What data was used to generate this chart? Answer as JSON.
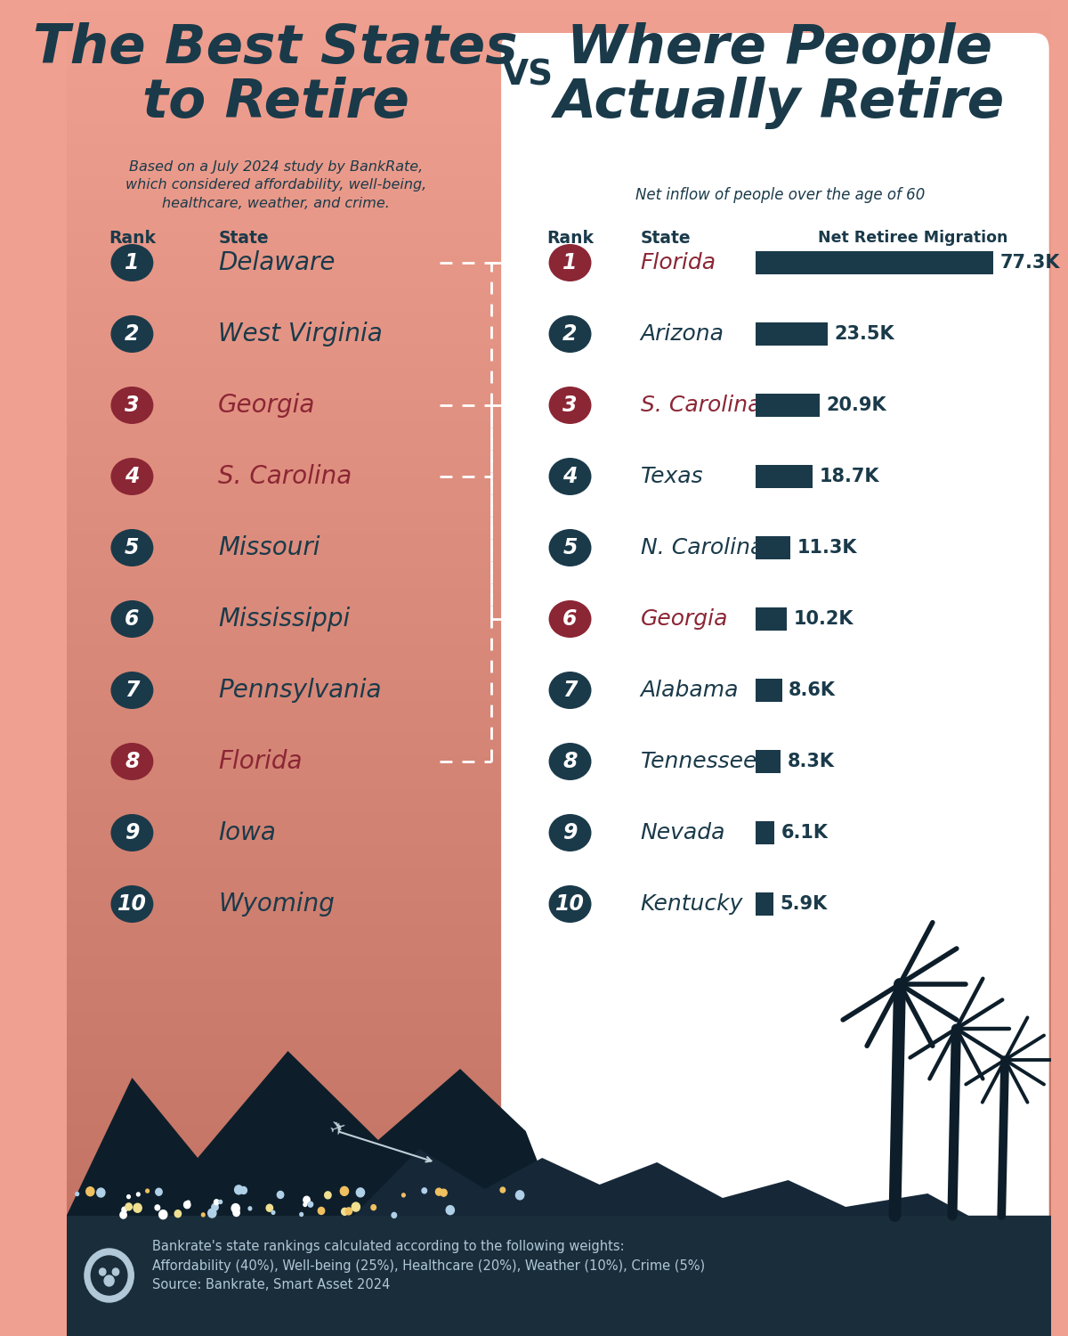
{
  "dark_navy": "#1a3a4a",
  "red_highlight": "#8b2635",
  "left_states": [
    {
      "rank": 1,
      "name": "Delaware",
      "highlight": false
    },
    {
      "rank": 2,
      "name": "West Virginia",
      "highlight": false
    },
    {
      "rank": 3,
      "name": "Georgia",
      "highlight": true
    },
    {
      "rank": 4,
      "name": "S. Carolina",
      "highlight": true
    },
    {
      "rank": 5,
      "name": "Missouri",
      "highlight": false
    },
    {
      "rank": 6,
      "name": "Mississippi",
      "highlight": false
    },
    {
      "rank": 7,
      "name": "Pennsylvania",
      "highlight": false
    },
    {
      "rank": 8,
      "name": "Florida",
      "highlight": true
    },
    {
      "rank": 9,
      "name": "Iowa",
      "highlight": false
    },
    {
      "rank": 10,
      "name": "Wyoming",
      "highlight": false
    }
  ],
  "right_states": [
    {
      "rank": 1,
      "name": "Florida",
      "value": 77.3,
      "label": "77.3K",
      "highlight": true
    },
    {
      "rank": 2,
      "name": "Arizona",
      "value": 23.5,
      "label": "23.5K",
      "highlight": false
    },
    {
      "rank": 3,
      "name": "S. Carolina",
      "value": 20.9,
      "label": "20.9K",
      "highlight": true
    },
    {
      "rank": 4,
      "name": "Texas",
      "value": 18.7,
      "label": "18.7K",
      "highlight": false
    },
    {
      "rank": 5,
      "name": "N. Carolina",
      "value": 11.3,
      "label": "11.3K",
      "highlight": false
    },
    {
      "rank": 6,
      "name": "Georgia",
      "value": 10.2,
      "label": "10.2K",
      "highlight": true
    },
    {
      "rank": 7,
      "name": "Alabama",
      "value": 8.6,
      "label": "8.6K",
      "highlight": false
    },
    {
      "rank": 8,
      "name": "Tennessee",
      "value": 8.3,
      "label": "8.3K",
      "highlight": false
    },
    {
      "rank": 9,
      "name": "Nevada",
      "value": 6.1,
      "label": "6.1K",
      "highlight": false
    },
    {
      "rank": 10,
      "name": "Kentucky",
      "value": 5.9,
      "label": "5.9K",
      "highlight": false
    }
  ],
  "footer_text": "Bankrate's state rankings calculated according to the following weights:\nAffordability (40%), Well-being (25%), Healthcare (20%), Weather (10%), Crime (5%)\nSource: Bankrate, Smart Asset 2024",
  "bg_top": "#f0a090",
  "bg_bottom": "#c07060",
  "dark_bg": "#1a2d3a",
  "max_bar_val": 77.3
}
